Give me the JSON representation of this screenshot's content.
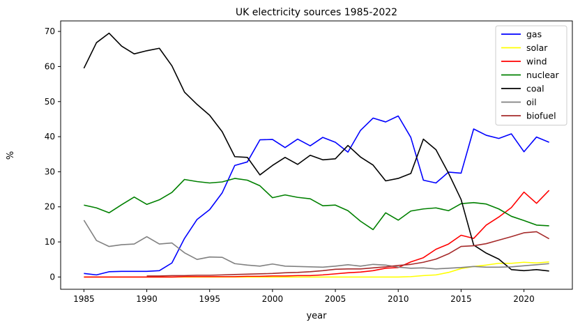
{
  "chart_data": {
    "type": "line",
    "title": "UK electricity sources 1985-2022",
    "xlabel": "year",
    "ylabel": "%",
    "xlim": [
      1983.15,
      2023.85
    ],
    "ylim": [
      -3.5,
      73.0
    ],
    "xticks": [
      1985,
      1990,
      1995,
      2000,
      2005,
      2010,
      2015,
      2020
    ],
    "yticks": [
      0,
      10,
      20,
      30,
      40,
      50,
      60,
      70
    ],
    "grid": false,
    "legend_position": "top-right",
    "series": [
      {
        "name": "gas",
        "color": "#0000ff",
        "x": [
          1985,
          1986,
          1987,
          1988,
          1989,
          1990,
          1991,
          1992,
          1993,
          1994,
          1995,
          1996,
          1997,
          1998,
          1999,
          2000,
          2001,
          2002,
          2003,
          2004,
          2005,
          2006,
          2007,
          2008,
          2009,
          2010,
          2011,
          2012,
          2013,
          2014,
          2015,
          2016,
          2017,
          2018,
          2019,
          2020,
          2021,
          2022
        ],
        "y": [
          1.0,
          0.6,
          1.5,
          1.6,
          1.6,
          1.6,
          1.8,
          4.0,
          11.0,
          16.4,
          19.2,
          24.0,
          31.8,
          32.8,
          39.1,
          39.2,
          36.9,
          39.3,
          37.4,
          39.8,
          38.4,
          35.6,
          41.8,
          45.3,
          44.2,
          45.9,
          39.8,
          27.6,
          26.8,
          29.9,
          29.6,
          42.2,
          40.4,
          39.5,
          40.8,
          35.7,
          39.9,
          38.4
        ]
      },
      {
        "name": "solar",
        "color": "#ffff00",
        "x": [
          1985,
          1986,
          1987,
          1988,
          1989,
          1990,
          1991,
          1992,
          1993,
          1994,
          1995,
          1996,
          1997,
          1998,
          1999,
          2000,
          2001,
          2002,
          2003,
          2004,
          2005,
          2006,
          2007,
          2008,
          2009,
          2010,
          2011,
          2012,
          2013,
          2014,
          2015,
          2016,
          2017,
          2018,
          2019,
          2020,
          2021,
          2022
        ],
        "y": [
          0,
          0,
          0,
          0,
          0,
          0,
          0,
          0,
          0,
          0,
          0,
          0,
          0,
          0,
          0,
          0,
          0,
          0,
          0,
          0,
          0,
          0,
          0,
          0,
          0,
          0,
          0.1,
          0.4,
          0.6,
          1.3,
          2.4,
          3.0,
          3.4,
          3.9,
          3.9,
          4.2,
          4.0,
          4.3
        ]
      },
      {
        "name": "wind",
        "color": "#ff0000",
        "x": [
          1985,
          1986,
          1987,
          1988,
          1989,
          1990,
          1991,
          1992,
          1993,
          1994,
          1995,
          1996,
          1997,
          1998,
          1999,
          2000,
          2001,
          2002,
          2003,
          2004,
          2005,
          2006,
          2007,
          2008,
          2009,
          2010,
          2011,
          2012,
          2013,
          2014,
          2015,
          2016,
          2017,
          2018,
          2019,
          2020,
          2021,
          2022
        ],
        "y": [
          0,
          0,
          0,
          0,
          0,
          0,
          0,
          0,
          0.1,
          0.1,
          0.1,
          0.1,
          0.1,
          0.2,
          0.2,
          0.3,
          0.3,
          0.4,
          0.4,
          0.6,
          0.9,
          1.2,
          1.4,
          1.8,
          2.5,
          2.7,
          4.3,
          5.5,
          7.9,
          9.4,
          11.9,
          11.0,
          14.8,
          17.1,
          19.8,
          24.2,
          21.0,
          24.7
        ]
      },
      {
        "name": "nuclear",
        "color": "#008000",
        "x": [
          1985,
          1986,
          1987,
          1988,
          1989,
          1990,
          1991,
          1992,
          1993,
          1994,
          1995,
          1996,
          1997,
          1998,
          1999,
          2000,
          2001,
          2002,
          2003,
          2004,
          2005,
          2006,
          2007,
          2008,
          2009,
          2010,
          2011,
          2012,
          2013,
          2014,
          2015,
          2016,
          2017,
          2018,
          2019,
          2020,
          2021,
          2022
        ],
        "y": [
          20.5,
          19.7,
          18.3,
          20.6,
          22.8,
          20.7,
          22.0,
          24.1,
          27.8,
          27.2,
          26.8,
          27.1,
          28.1,
          27.6,
          26.0,
          22.6,
          23.4,
          22.7,
          22.3,
          20.3,
          20.5,
          18.9,
          15.9,
          13.5,
          18.3,
          16.2,
          18.8,
          19.4,
          19.7,
          18.9,
          20.9,
          21.2,
          20.8,
          19.4,
          17.3,
          16.1,
          14.8,
          14.6
        ]
      },
      {
        "name": "coal",
        "color": "#000000",
        "x": [
          1985,
          1986,
          1987,
          1988,
          1989,
          1990,
          1991,
          1992,
          1993,
          1994,
          1995,
          1996,
          1997,
          1998,
          1999,
          2000,
          2001,
          2002,
          2003,
          2004,
          2005,
          2006,
          2007,
          2008,
          2009,
          2010,
          2011,
          2012,
          2013,
          2014,
          2015,
          2016,
          2017,
          2018,
          2019,
          2020,
          2021,
          2022
        ],
        "y": [
          59.5,
          66.8,
          69.5,
          65.8,
          63.6,
          64.5,
          65.2,
          60.2,
          52.7,
          49.2,
          46.1,
          41.4,
          34.3,
          34.1,
          29.1,
          31.8,
          34.1,
          32.1,
          34.7,
          33.4,
          33.7,
          37.5,
          34.2,
          31.9,
          27.4,
          28.1,
          29.5,
          39.3,
          36.3,
          29.6,
          22.1,
          9.1,
          6.8,
          5.1,
          2.1,
          1.8,
          2.1,
          1.7
        ]
      },
      {
        "name": "oil",
        "color": "#808080",
        "x": [
          1985,
          1986,
          1987,
          1988,
          1989,
          1990,
          1991,
          1992,
          1993,
          1994,
          1995,
          1996,
          1997,
          1998,
          1999,
          2000,
          2001,
          2002,
          2003,
          2004,
          2005,
          2006,
          2007,
          2008,
          2009,
          2010,
          2011,
          2012,
          2013,
          2014,
          2015,
          2016,
          2017,
          2018,
          2019,
          2020,
          2021,
          2022
        ],
        "y": [
          16.2,
          10.4,
          8.7,
          9.2,
          9.4,
          11.5,
          9.4,
          9.7,
          6.9,
          5.0,
          5.7,
          5.6,
          3.8,
          3.4,
          3.1,
          3.7,
          3.1,
          3.0,
          2.9,
          2.8,
          3.1,
          3.5,
          3.1,
          3.6,
          3.4,
          2.8,
          2.5,
          2.6,
          2.3,
          2.5,
          2.7,
          3.0,
          2.8,
          2.8,
          2.9,
          3.2,
          3.5,
          3.8
        ]
      },
      {
        "name": "biofuel",
        "color": "#a52a2a",
        "x": [
          1990,
          1991,
          1992,
          1993,
          1994,
          1995,
          1996,
          1997,
          1998,
          1999,
          2000,
          2001,
          2002,
          2003,
          2004,
          2005,
          2006,
          2007,
          2008,
          2009,
          2010,
          2011,
          2012,
          2013,
          2014,
          2015,
          2016,
          2017,
          2018,
          2019,
          2020,
          2021,
          2022
        ],
        "y": [
          0.3,
          0.3,
          0.4,
          0.4,
          0.5,
          0.5,
          0.6,
          0.7,
          0.8,
          0.9,
          1.0,
          1.2,
          1.3,
          1.5,
          1.8,
          2.2,
          2.3,
          2.3,
          2.6,
          2.9,
          3.3,
          3.6,
          4.2,
          5.1,
          6.6,
          8.7,
          8.9,
          9.5,
          10.5,
          11.5,
          12.6,
          12.9,
          10.9
        ]
      }
    ]
  }
}
